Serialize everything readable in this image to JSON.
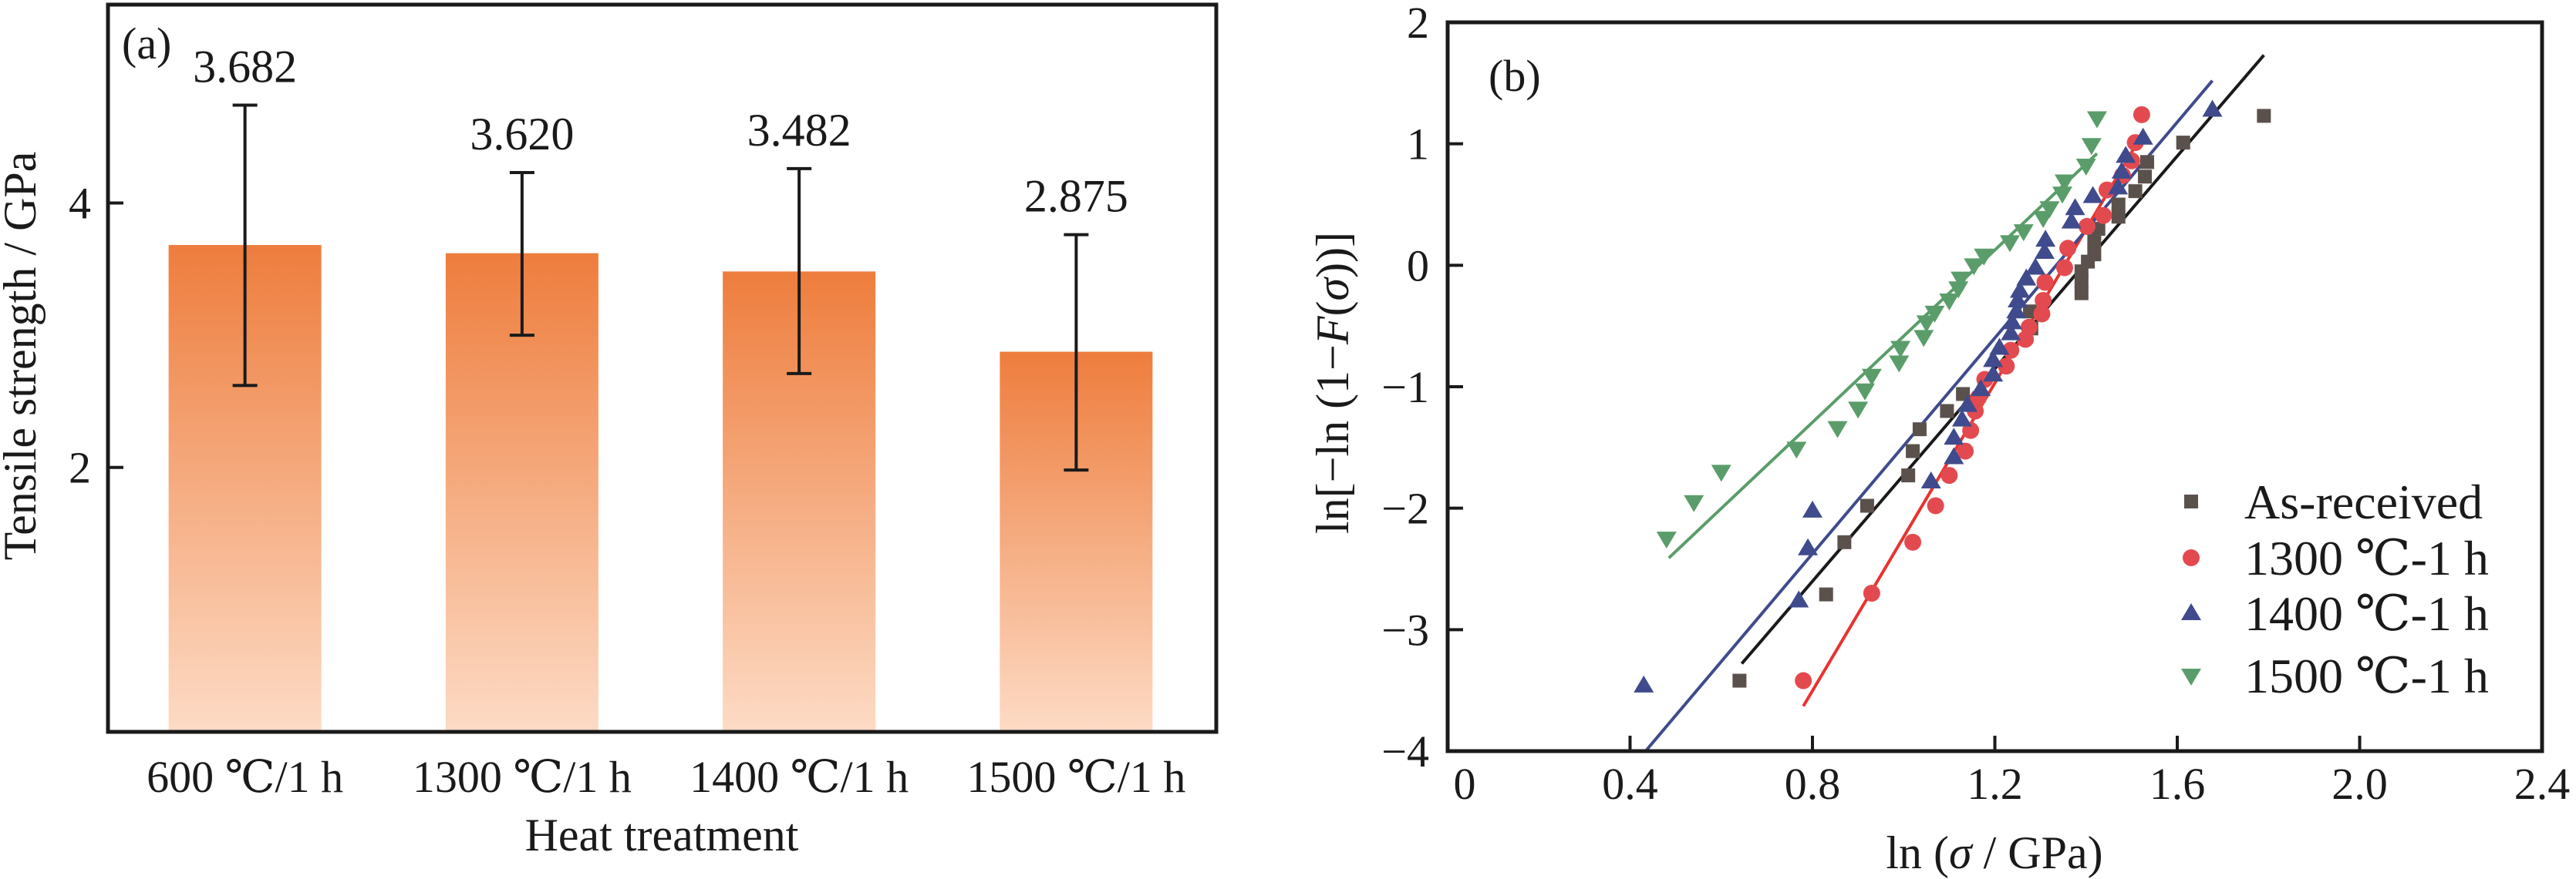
{
  "figure": {
    "panels": [
      "(a)",
      "(b)"
    ]
  },
  "chart_data": [
    {
      "type": "bar",
      "panel_label": "(a)",
      "title": "",
      "xlabel": "Heat treatment",
      "ylabel": "Tensile strength / GPa",
      "categories": [
        "600 ℃/1 h",
        "1300 ℃/1 h",
        "1400 ℃/1 h",
        "1500 ℃/1 h"
      ],
      "values": [
        3.682,
        3.62,
        3.482,
        2.875
      ],
      "value_labels": [
        "3.682",
        "3.620",
        "3.482",
        "2.875"
      ],
      "error_low": [
        2.62,
        3.0,
        2.71,
        1.98
      ],
      "error_high": [
        4.74,
        4.23,
        4.26,
        3.76
      ],
      "ylim": [
        0,
        5.5
      ],
      "yticks": [
        2,
        4
      ],
      "ytick_labels": [
        "2",
        "4"
      ],
      "bar_gradient": {
        "top": "#ee7d3d",
        "bottom": "#fddbc5"
      },
      "error_bar_color": "#1a1a1a",
      "grid": false
    },
    {
      "type": "scatter",
      "panel_label": "(b)",
      "title": "",
      "xlabel": "ln (σ / GPa)",
      "ylabel": "ln[−ln (1−F(σ))]",
      "xlim": [
        0,
        2.4
      ],
      "ylim": [
        -4,
        2
      ],
      "xticks": [
        0,
        0.4,
        0.8,
        1.2,
        1.6,
        2.0,
        2.4
      ],
      "xtick_labels": [
        "0",
        "0.4",
        "0.8",
        "1.2",
        "1.6",
        "2.0",
        "2.4"
      ],
      "yticks": [
        -4,
        -3,
        -2,
        -1,
        0,
        1,
        2
      ],
      "ytick_labels": [
        "−4",
        "−3",
        "−2",
        "−1",
        "0",
        "1",
        "2"
      ],
      "legend_position": "bottom-right",
      "grid": false,
      "series": [
        {
          "name": "As-received",
          "marker": "square",
          "color": "#5b514c",
          "line_color": "#1a1a1a",
          "fit_line": [
            [
              0.645,
              -3.28
            ],
            [
              1.79,
              1.73
            ]
          ],
          "points": [
            [
              0.64,
              -3.42
            ],
            [
              0.83,
              -2.71
            ],
            [
              0.87,
              -2.28
            ],
            [
              0.92,
              -1.98
            ],
            [
              1.01,
              -1.73
            ],
            [
              1.02,
              -1.53
            ],
            [
              1.035,
              -1.35
            ],
            [
              1.095,
              -1.2
            ],
            [
              1.13,
              -1.06
            ],
            [
              1.277,
              -0.38
            ],
            [
              1.28,
              -0.52
            ],
            [
              1.39,
              -0.23
            ],
            [
              1.39,
              -0.14
            ],
            [
              1.39,
              -0.05
            ],
            [
              1.404,
              0.03
            ],
            [
              1.418,
              0.09
            ],
            [
              1.418,
              0.2
            ],
            [
              1.427,
              0.3
            ],
            [
              1.471,
              0.4
            ],
            [
              1.471,
              0.5
            ],
            [
              1.508,
              0.61
            ],
            [
              1.529,
              0.73
            ],
            [
              1.534,
              0.85
            ],
            [
              1.613,
              1.01
            ],
            [
              1.79,
              1.23
            ]
          ]
        },
        {
          "name": "1300 ℃-1 h",
          "marker": "circle",
          "color": "#e34a4f",
          "line_color": "#e8332f",
          "fit_line": [
            [
              0.78,
              -3.63
            ],
            [
              1.522,
              1.07
            ]
          ],
          "points": [
            [
              0.78,
              -3.42
            ],
            [
              0.93,
              -2.7
            ],
            [
              1.02,
              -2.28
            ],
            [
              1.07,
              -1.98
            ],
            [
              1.1,
              -1.73
            ],
            [
              1.135,
              -1.53
            ],
            [
              1.147,
              -1.36
            ],
            [
              1.157,
              -1.2
            ],
            [
              1.164,
              -1.09
            ],
            [
              1.178,
              -0.94
            ],
            [
              1.225,
              -0.83
            ],
            [
              1.235,
              -0.7
            ],
            [
              1.267,
              -0.61
            ],
            [
              1.275,
              -0.51
            ],
            [
              1.303,
              -0.4
            ],
            [
              1.306,
              -0.29
            ],
            [
              1.31,
              -0.14
            ],
            [
              1.353,
              -0.02
            ],
            [
              1.36,
              0.14
            ],
            [
              1.402,
              0.32
            ],
            [
              1.438,
              0.41
            ],
            [
              1.446,
              0.62
            ],
            [
              1.48,
              0.74
            ],
            [
              1.5,
              0.86
            ],
            [
              1.508,
              1.01
            ],
            [
              1.522,
              1.24
            ]
          ]
        },
        {
          "name": "1400 ℃-1 h",
          "marker": "triangle-up",
          "color": "#3f4b8c",
          "line_color": "#3f4b8c",
          "fit_line": [
            [
              0.434,
              -4.0
            ],
            [
              1.677,
              1.52
            ]
          ],
          "points": [
            [
              0.43,
              -3.46
            ],
            [
              0.77,
              -2.76
            ],
            [
              0.79,
              -2.33
            ],
            [
              0.8,
              -2.02
            ],
            [
              1.06,
              -1.78
            ],
            [
              1.11,
              -1.58
            ],
            [
              1.11,
              -1.42
            ],
            [
              1.128,
              -1.27
            ],
            [
              1.14,
              -1.15
            ],
            [
              1.169,
              -1.02
            ],
            [
              1.196,
              -0.9
            ],
            [
              1.196,
              -0.78
            ],
            [
              1.21,
              -0.68
            ],
            [
              1.235,
              -0.56
            ],
            [
              1.238,
              -0.47
            ],
            [
              1.247,
              -0.38
            ],
            [
              1.25,
              -0.29
            ],
            [
              1.255,
              -0.21
            ],
            [
              1.269,
              -0.11
            ],
            [
              1.289,
              -0.02
            ],
            [
              1.309,
              0.11
            ],
            [
              1.311,
              0.21
            ],
            [
              1.368,
              0.36
            ],
            [
              1.376,
              0.47
            ],
            [
              1.415,
              0.57
            ],
            [
              1.47,
              0.64
            ],
            [
              1.478,
              0.77
            ],
            [
              1.487,
              0.9
            ],
            [
              1.525,
              1.05
            ],
            [
              1.677,
              1.28
            ]
          ]
        },
        {
          "name": "1500 ℃-1 h",
          "marker": "triangle-down",
          "color": "#5a9d6a",
          "line_color": "#5a9d6a",
          "fit_line": [
            [
              0.485,
              -2.41
            ],
            [
              1.424,
              0.92
            ]
          ],
          "points": [
            [
              0.48,
              -2.25
            ],
            [
              0.54,
              -1.95
            ],
            [
              0.6,
              -1.7
            ],
            [
              0.765,
              -1.51
            ],
            [
              0.855,
              -1.34
            ],
            [
              0.9,
              -1.18
            ],
            [
              0.915,
              -1.03
            ],
            [
              0.93,
              -0.91
            ],
            [
              0.99,
              -0.8
            ],
            [
              0.993,
              -0.68
            ],
            [
              1.044,
              -0.59
            ],
            [
              1.05,
              -0.47
            ],
            [
              1.068,
              -0.39
            ],
            [
              1.1,
              -0.29
            ],
            [
              1.12,
              -0.19
            ],
            [
              1.125,
              -0.11
            ],
            [
              1.154,
              0.0
            ],
            [
              1.176,
              0.08
            ],
            [
              1.233,
              0.19
            ],
            [
              1.263,
              0.28
            ],
            [
              1.306,
              0.39
            ],
            [
              1.32,
              0.47
            ],
            [
              1.348,
              0.59
            ],
            [
              1.353,
              0.69
            ],
            [
              1.4,
              0.82
            ],
            [
              1.412,
              0.99
            ],
            [
              1.424,
              1.21
            ]
          ]
        }
      ]
    }
  ]
}
